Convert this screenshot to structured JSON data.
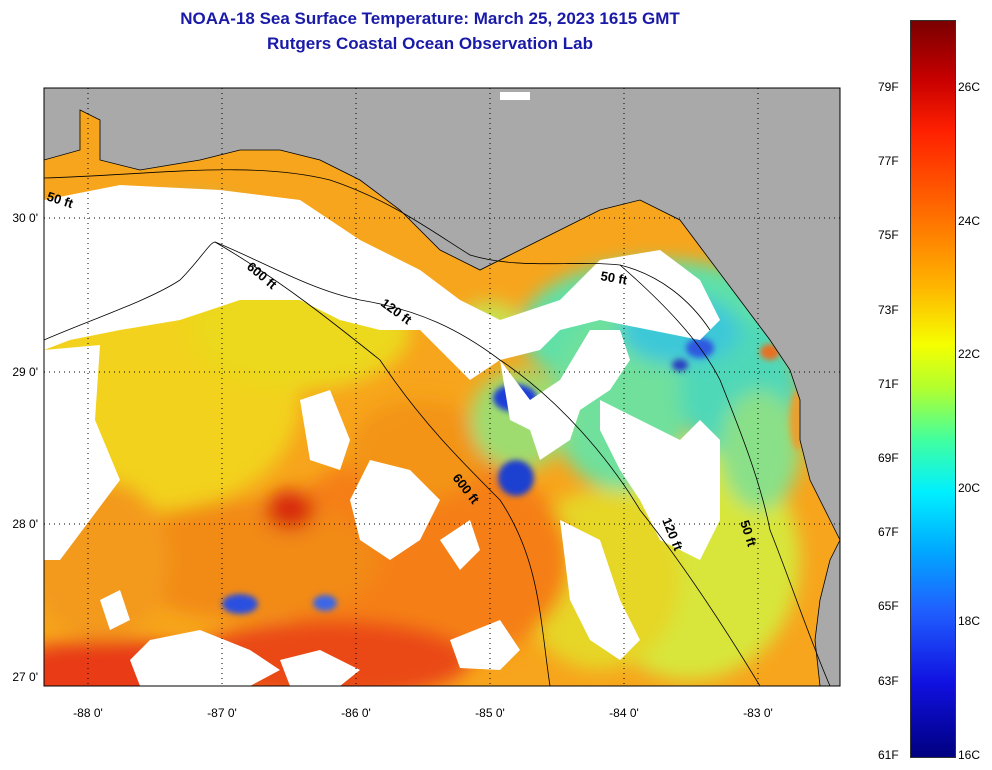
{
  "title": {
    "line1": "NOAA-18 Sea Surface Temperature:  March 25, 2023 1615 GMT",
    "line2": "Rutgers Coastal Ocean Observation Lab"
  },
  "axes": {
    "lat_labels": [
      "30 0'",
      "29 0'",
      "28 0'",
      "27 0'"
    ],
    "lon_labels": [
      "-88 0'",
      "-87 0'",
      "-86 0'",
      "-85 0'",
      "-84 0'",
      "-83 0'"
    ]
  },
  "isobaths": [
    "50 ft",
    "600 ft",
    "120 ft",
    "50 ft",
    "600 ft",
    "120 ft",
    "50 ft"
  ],
  "colorbar": {
    "fahrenheit": [
      "79F",
      "77F",
      "75F",
      "73F",
      "71F",
      "69F",
      "67F",
      "65F",
      "63F",
      "61F"
    ],
    "celsius": [
      "26C",
      "24C",
      "22C",
      "20C",
      "18C",
      "16C"
    ]
  },
  "colors": {
    "title": "#1a1aa8",
    "land": "#a9a9a9",
    "cloud": "#ffffff",
    "warm": "#ff8c00",
    "cool": "#40e0c0"
  }
}
